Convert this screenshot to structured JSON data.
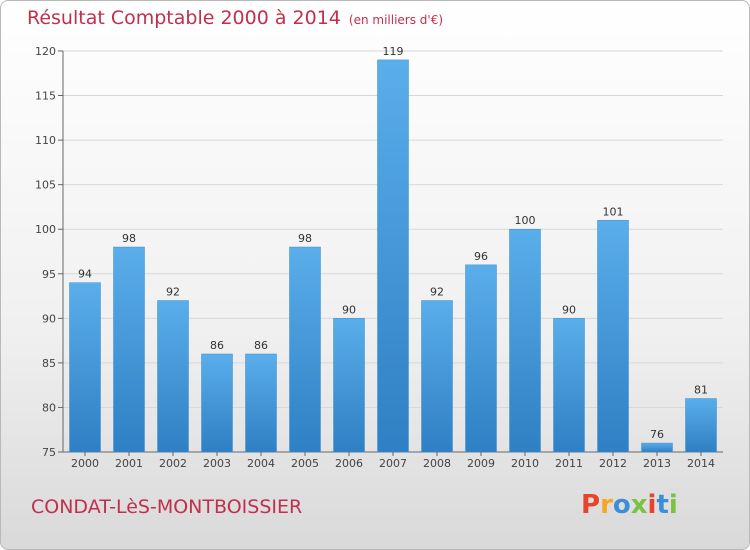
{
  "header": {
    "title": "Résultat Comptable 2000 à 2014",
    "subtitle": "(en milliers d'€)"
  },
  "footer": {
    "commune": "CONDAT-LèS-MONTBOISSIER",
    "logo_text": "Proxiti",
    "logo_colors": [
      "#e8442c",
      "#f6a623",
      "#3b8fd9",
      "#7cc242",
      "#e8442c",
      "#3b8fd9",
      "#7cc242"
    ]
  },
  "colors": {
    "title": "#c0304e",
    "bar": "#4a9fe0",
    "bar_dark": "#2f7fc4"
  },
  "chart_data": {
    "type": "bar",
    "title": "Résultat Comptable 2000 à 2014",
    "subtitle": "(en milliers d'€)",
    "xlabel": "",
    "ylabel": "",
    "categories": [
      "2000",
      "2001",
      "2002",
      "2003",
      "2004",
      "2005",
      "2006",
      "2007",
      "2008",
      "2009",
      "2010",
      "2011",
      "2012",
      "2013",
      "2014"
    ],
    "values": [
      94,
      98,
      92,
      86,
      86,
      98,
      90,
      119,
      92,
      96,
      100,
      90,
      101,
      76,
      81
    ],
    "ylim": [
      75,
      120
    ],
    "yticks": [
      75,
      80,
      85,
      90,
      95,
      100,
      105,
      110,
      115,
      120
    ],
    "grid": true,
    "legend": "none"
  }
}
